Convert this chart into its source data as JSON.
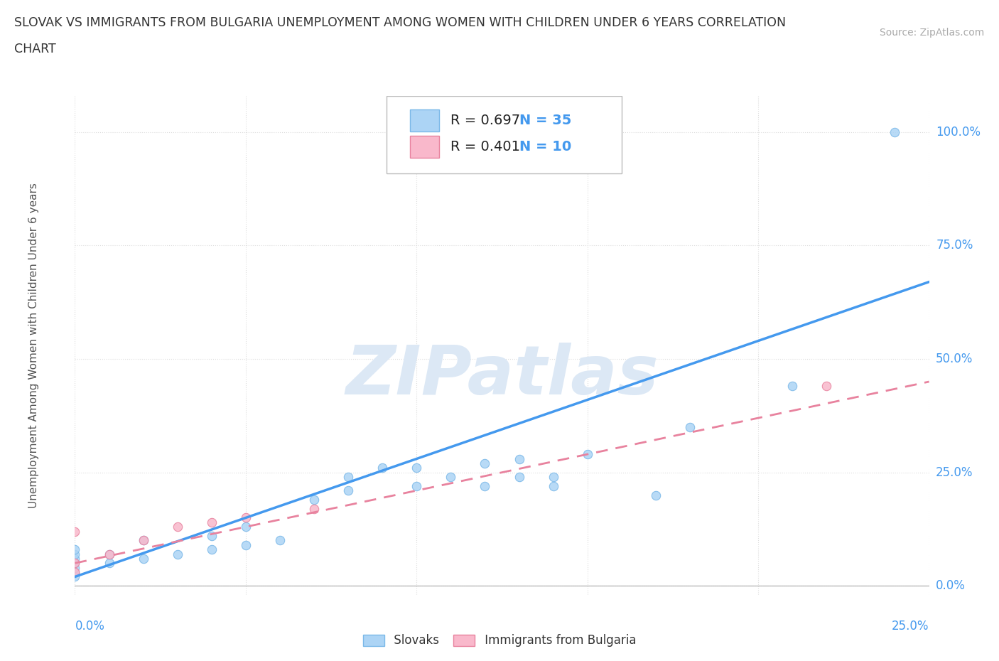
{
  "title_line1": "SLOVAK VS IMMIGRANTS FROM BULGARIA UNEMPLOYMENT AMONG WOMEN WITH CHILDREN UNDER 6 YEARS CORRELATION",
  "title_line2": "CHART",
  "source_text": "Source: ZipAtlas.com",
  "ylabel": "Unemployment Among Women with Children Under 6 years",
  "yticks_labels": [
    "0.0%",
    "25.0%",
    "50.0%",
    "75.0%",
    "100.0%"
  ],
  "yticks_values": [
    0.0,
    0.25,
    0.5,
    0.75,
    1.0
  ],
  "xticks_labels": [
    "0.0%",
    "25.0%"
  ],
  "xlim": [
    0.0,
    0.25
  ],
  "ylim": [
    -0.02,
    1.08
  ],
  "slovak_R": 0.697,
  "slovak_N": 35,
  "bulgaria_R": 0.401,
  "bulgaria_N": 10,
  "slovak_color": "#acd4f5",
  "slovak_edge_color": "#7ab8e8",
  "bulgaria_color": "#f9b8cb",
  "bulgaria_edge_color": "#e8829e",
  "trendline_slovak_color": "#4499ee",
  "trendline_bulgaria_color": "#e8829e",
  "watermark_color": "#dce8f5",
  "background_color": "#ffffff",
  "grid_color": "#dddddd",
  "title_color": "#333333",
  "axis_tick_color": "#4499ee",
  "source_color": "#aaaaaa",
  "slovak_scatter_x": [
    0.0,
    0.0,
    0.0,
    0.0,
    0.0,
    0.0,
    0.0,
    0.01,
    0.01,
    0.02,
    0.02,
    0.03,
    0.04,
    0.04,
    0.05,
    0.05,
    0.06,
    0.07,
    0.08,
    0.08,
    0.09,
    0.1,
    0.1,
    0.11,
    0.12,
    0.12,
    0.13,
    0.13,
    0.14,
    0.14,
    0.15,
    0.17,
    0.18,
    0.21,
    0.24
  ],
  "slovak_scatter_y": [
    0.02,
    0.03,
    0.04,
    0.05,
    0.06,
    0.07,
    0.08,
    0.05,
    0.07,
    0.06,
    0.1,
    0.07,
    0.08,
    0.11,
    0.09,
    0.13,
    0.1,
    0.19,
    0.21,
    0.24,
    0.26,
    0.22,
    0.26,
    0.24,
    0.22,
    0.27,
    0.24,
    0.28,
    0.22,
    0.24,
    0.29,
    0.2,
    0.35,
    0.44,
    1.0
  ],
  "bulgaria_scatter_x": [
    0.0,
    0.0,
    0.0,
    0.01,
    0.02,
    0.03,
    0.04,
    0.05,
    0.07,
    0.22
  ],
  "bulgaria_scatter_y": [
    0.03,
    0.05,
    0.12,
    0.07,
    0.1,
    0.13,
    0.14,
    0.15,
    0.17,
    0.44
  ],
  "trendline_slovak_x0": 0.0,
  "trendline_slovak_y0": 0.02,
  "trendline_slovak_x1": 0.25,
  "trendline_slovak_y1": 0.67,
  "trendline_bulgaria_x0": 0.0,
  "trendline_bulgaria_y0": 0.05,
  "trendline_bulgaria_x1": 0.25,
  "trendline_bulgaria_y1": 0.45
}
